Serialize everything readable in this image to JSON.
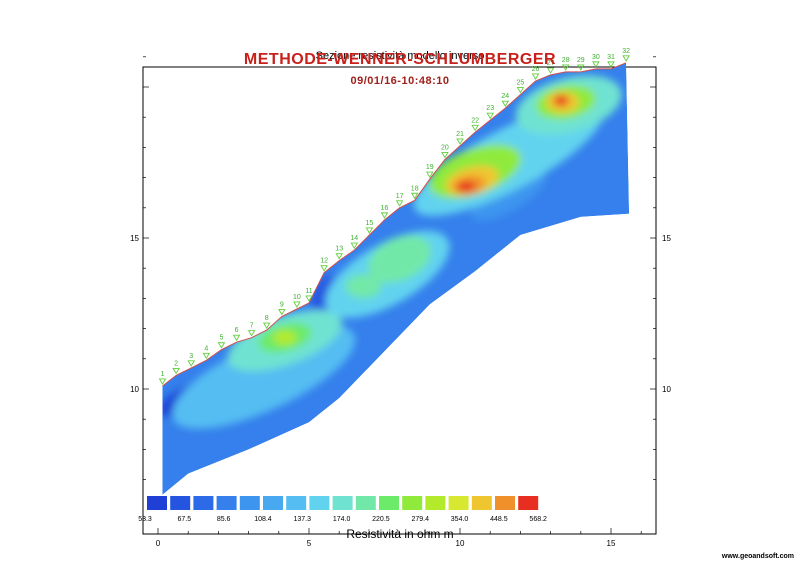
{
  "titles": {
    "main": "Sezione resistività modello inverso",
    "overlay": "METHODE-WENNER-SCHLUMBERGER",
    "datetime": "09/01/16-10:48:10"
  },
  "watermark": "www.geoandsoft.com",
  "colors": {
    "frame": "#000000",
    "electrode": "#5fcf3a",
    "electrode_label": "#3fb030",
    "surface_line": "#d05050"
  },
  "chart_data": {
    "type": "heatmap",
    "xlim": [
      0,
      16.5
    ],
    "ylim": [
      6.4,
      21.5
    ],
    "x_ticks": [
      0,
      5,
      10,
      15
    ],
    "y_ticks": [
      10,
      15
    ],
    "x_tick_labels": [
      "0",
      "5",
      "10",
      "15"
    ],
    "y_tick_labels": [
      "10",
      "15"
    ],
    "electrodes": [
      {
        "n": "1",
        "x": 0.15,
        "y": 10.1
      },
      {
        "n": "2",
        "x": 0.6,
        "y": 10.45
      },
      {
        "n": "3",
        "x": 1.1,
        "y": 10.7
      },
      {
        "n": "4",
        "x": 1.6,
        "y": 10.95
      },
      {
        "n": "5",
        "x": 2.1,
        "y": 11.3
      },
      {
        "n": "6",
        "x": 2.6,
        "y": 11.55
      },
      {
        "n": "7",
        "x": 3.1,
        "y": 11.7
      },
      {
        "n": "8",
        "x": 3.6,
        "y": 11.95
      },
      {
        "n": "9",
        "x": 4.1,
        "y": 12.4
      },
      {
        "n": "10",
        "x": 4.6,
        "y": 12.65
      },
      {
        "n": "11",
        "x": 5.0,
        "y": 12.85
      },
      {
        "n": "12",
        "x": 5.5,
        "y": 13.85
      },
      {
        "n": "13",
        "x": 6.0,
        "y": 14.25
      },
      {
        "n": "14",
        "x": 6.5,
        "y": 14.6
      },
      {
        "n": "15",
        "x": 7.0,
        "y": 15.1
      },
      {
        "n": "16",
        "x": 7.5,
        "y": 15.6
      },
      {
        "n": "17",
        "x": 8.0,
        "y": 16.0
      },
      {
        "n": "18",
        "x": 8.5,
        "y": 16.25
      },
      {
        "n": "19",
        "x": 9.0,
        "y": 16.95
      },
      {
        "n": "20",
        "x": 9.5,
        "y": 17.6
      },
      {
        "n": "21",
        "x": 10.0,
        "y": 18.05
      },
      {
        "n": "22",
        "x": 10.5,
        "y": 18.5
      },
      {
        "n": "23",
        "x": 11.0,
        "y": 18.9
      },
      {
        "n": "24",
        "x": 11.5,
        "y": 19.3
      },
      {
        "n": "25",
        "x": 12.0,
        "y": 19.75
      },
      {
        "n": "26",
        "x": 12.5,
        "y": 20.2
      },
      {
        "n": "27",
        "x": 13.0,
        "y": 20.4
      },
      {
        "n": "28",
        "x": 13.5,
        "y": 20.5
      },
      {
        "n": "29",
        "x": 14.0,
        "y": 20.5
      },
      {
        "n": "30",
        "x": 14.5,
        "y": 20.6
      },
      {
        "n": "31",
        "x": 15.0,
        "y": 20.6
      },
      {
        "n": "32",
        "x": 15.5,
        "y": 20.8
      }
    ],
    "section_bottom": [
      {
        "x": 15.6,
        "y": 15.8
      },
      {
        "x": 14.0,
        "y": 15.7
      },
      {
        "x": 12.0,
        "y": 15.1
      },
      {
        "x": 10.5,
        "y": 13.9
      },
      {
        "x": 9.0,
        "y": 12.8
      },
      {
        "x": 6.0,
        "y": 9.7
      },
      {
        "x": 5.0,
        "y": 8.9
      },
      {
        "x": 3.0,
        "y": 8.0
      },
      {
        "x": 1.0,
        "y": 7.2
      },
      {
        "x": 0.15,
        "y": 6.5
      }
    ],
    "background_color_index": 3,
    "anomalies": [
      {
        "x": 1.3,
        "y": 9.7,
        "rx": 1.3,
        "ry": 0.5,
        "angle": -20,
        "level": 0
      },
      {
        "x": 5.6,
        "y": 13.0,
        "rx": 0.5,
        "ry": 0.8,
        "angle": 20,
        "level": 1
      },
      {
        "x": 8.8,
        "y": 16.3,
        "rx": 0.5,
        "ry": 0.4,
        "angle": 0,
        "level": 2
      },
      {
        "x": 11.6,
        "y": 16.4,
        "rx": 1.4,
        "ry": 0.5,
        "angle": -30,
        "level": 4
      },
      {
        "x": 3.5,
        "y": 10.4,
        "rx": 3.3,
        "ry": 1.1,
        "angle": -25,
        "level": 6
      },
      {
        "x": 4.2,
        "y": 11.6,
        "rx": 2.0,
        "ry": 0.8,
        "angle": -20,
        "level": 8
      },
      {
        "x": 4.2,
        "y": 11.7,
        "rx": 0.9,
        "ry": 0.45,
        "angle": -15,
        "level": 10
      },
      {
        "x": 4.2,
        "y": 11.7,
        "rx": 0.4,
        "ry": 0.25,
        "angle": 0,
        "level": 12
      },
      {
        "x": 7.6,
        "y": 13.8,
        "rx": 2.3,
        "ry": 1.0,
        "angle": -30,
        "level": 7
      },
      {
        "x": 8.0,
        "y": 14.3,
        "rx": 1.1,
        "ry": 0.7,
        "angle": -25,
        "level": 9
      },
      {
        "x": 6.8,
        "y": 13.4,
        "rx": 0.6,
        "ry": 0.4,
        "angle": 0,
        "level": 9
      },
      {
        "x": 11.6,
        "y": 17.6,
        "rx": 3.5,
        "ry": 1.0,
        "angle": -28,
        "level": 7
      },
      {
        "x": 10.5,
        "y": 17.2,
        "rx": 1.6,
        "ry": 0.75,
        "angle": -20,
        "level": 11
      },
      {
        "x": 10.4,
        "y": 16.9,
        "rx": 0.9,
        "ry": 0.45,
        "angle": -15,
        "level": 14
      },
      {
        "x": 10.3,
        "y": 16.75,
        "rx": 0.55,
        "ry": 0.3,
        "angle": -10,
        "level": 15
      },
      {
        "x": 10.2,
        "y": 16.7,
        "rx": 0.3,
        "ry": 0.18,
        "angle": 0,
        "level": 16
      },
      {
        "x": 13.6,
        "y": 19.4,
        "rx": 1.8,
        "ry": 0.9,
        "angle": -15,
        "level": 8
      },
      {
        "x": 13.5,
        "y": 19.5,
        "rx": 1.0,
        "ry": 0.55,
        "angle": -10,
        "level": 11
      },
      {
        "x": 13.4,
        "y": 19.5,
        "rx": 0.55,
        "ry": 0.35,
        "angle": 0,
        "level": 14
      },
      {
        "x": 13.35,
        "y": 19.55,
        "rx": 0.25,
        "ry": 0.18,
        "angle": 0,
        "level": 16
      }
    ],
    "color_scale": {
      "label": "Resistività in ohm m",
      "colors": [
        "#1f3fd6",
        "#2555e0",
        "#2c6ae8",
        "#3580ec",
        "#3d95ef",
        "#48a9f0",
        "#55bdf2",
        "#62d3ef",
        "#70e2d2",
        "#72e8a8",
        "#6cea6a",
        "#8fea3c",
        "#b3ea2c",
        "#d8e830",
        "#f0c630",
        "#f0902a",
        "#e82e20"
      ],
      "tick_labels": [
        "53.3",
        "67.5",
        "85.6",
        "108.4",
        "137.3",
        "174.0",
        "220.5",
        "279.4",
        "354.0",
        "448.5",
        "568.2"
      ]
    }
  }
}
